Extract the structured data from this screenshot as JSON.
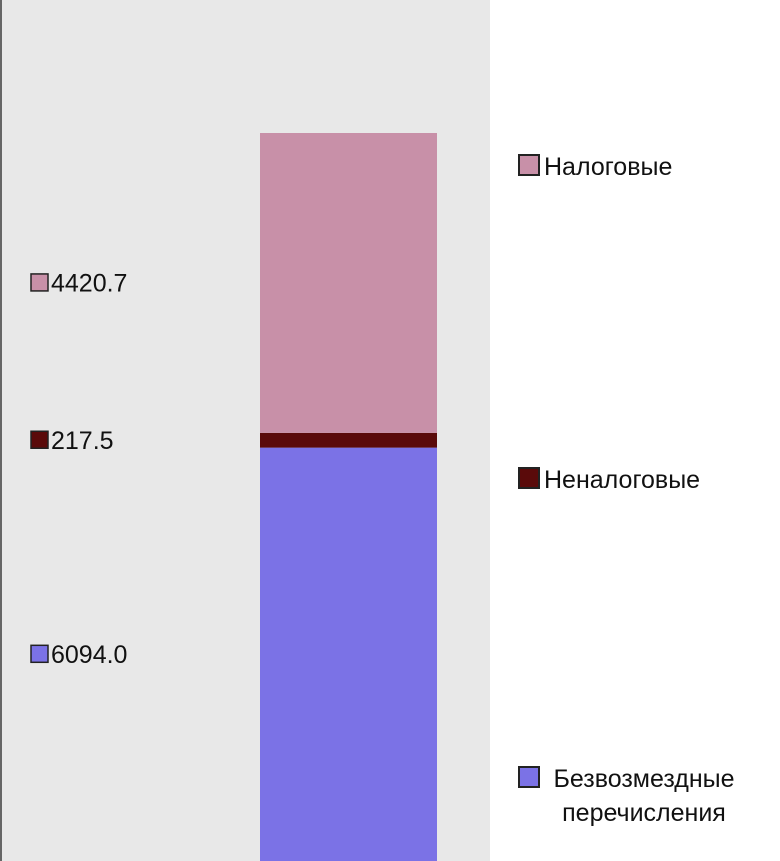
{
  "chart_data": {
    "type": "stacked_bar",
    "categories": [
      null
    ],
    "series": [
      {
        "name": "Безвозмездные перечисления",
        "color": "#7b72e6",
        "values": [
          6094
        ],
        "value_labels": [
          "6094.0"
        ]
      },
      {
        "name": "Неналоговые",
        "color": "#5a0a0a",
        "values": [
          217.5
        ]
      },
      {
        "name": "Налоговые",
        "color": "#c890a8",
        "values": [
          4420.7
        ]
      }
    ]
  }
}
